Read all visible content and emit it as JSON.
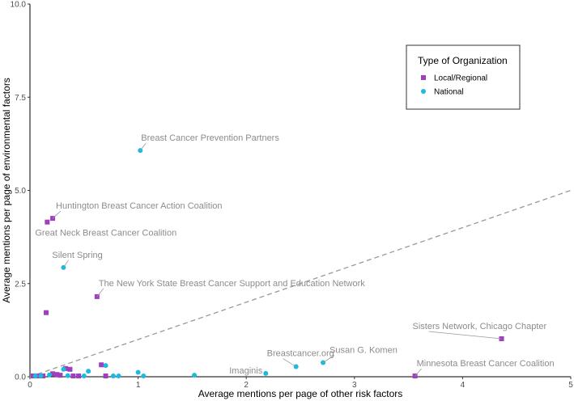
{
  "chart_data": {
    "type": "scatter",
    "title": "",
    "xlabel": "Average mentions per page of other risk factors",
    "ylabel": "Average mentions per page of environmental factors",
    "xlim": [
      0,
      5
    ],
    "ylim": [
      0,
      10
    ],
    "x_ticks": [
      0,
      1,
      2,
      3,
      4,
      5
    ],
    "x_tick_labels": [
      "0",
      "1",
      "2",
      "3",
      "4",
      "5"
    ],
    "y_ticks": [
      0,
      2.5,
      5,
      7.5,
      10
    ],
    "y_tick_labels": [
      "0.0",
      "2.5",
      "5.0",
      "7.5",
      "10.0"
    ],
    "grid": false,
    "reference_line": {
      "style": "dashed",
      "color": "#999999",
      "from": [
        0,
        0
      ],
      "to": [
        5,
        5
      ]
    },
    "legend": {
      "title": "Type of Organization",
      "placement": "top-right",
      "entries": [
        {
          "label": "Local/Regional",
          "color": "#9e3fbf",
          "shape": "square"
        },
        {
          "label": "National",
          "color": "#1cb9e0",
          "shape": "circle"
        }
      ]
    },
    "series": [
      {
        "name": "Local/Regional",
        "color": "#9e3fbf",
        "shape": "square",
        "points": [
          {
            "x": 0.21,
            "y": 4.25,
            "label": "Huntington Breast Cancer Action Coalition"
          },
          {
            "x": 0.16,
            "y": 4.15,
            "label": "Great Neck Breast Cancer Coalition"
          },
          {
            "x": 0.62,
            "y": 2.15,
            "label": "The New York State Breast Cancer Support and Education Network"
          },
          {
            "x": 0.15,
            "y": 1.72,
            "label": ""
          },
          {
            "x": 4.36,
            "y": 1.02,
            "label": "Sisters Network, Chicago Chapter"
          },
          {
            "x": 3.56,
            "y": 0.0,
            "label": "Minnesota Breast Cancer Coalition"
          },
          {
            "x": 0.66,
            "y": 0.32,
            "label": ""
          },
          {
            "x": 0.33,
            "y": 0.22,
            "label": ""
          },
          {
            "x": 0.37,
            "y": 0.2,
            "label": ""
          },
          {
            "x": 0.25,
            "y": 0.06,
            "label": ""
          },
          {
            "x": 0.21,
            "y": 0.08,
            "label": ""
          },
          {
            "x": 0.28,
            "y": 0.04,
            "label": ""
          },
          {
            "x": 0.4,
            "y": 0.02,
            "label": ""
          },
          {
            "x": 0.45,
            "y": 0.01,
            "label": ""
          },
          {
            "x": 0.7,
            "y": 0.0,
            "label": ""
          },
          {
            "x": 0.08,
            "y": 0.01,
            "label": ""
          },
          {
            "x": 0.12,
            "y": 0.02,
            "label": ""
          },
          {
            "x": 0.03,
            "y": 0.0,
            "label": ""
          }
        ]
      },
      {
        "name": "National",
        "color": "#1cb9e0",
        "shape": "circle",
        "points": [
          {
            "x": 1.02,
            "y": 6.07,
            "label": "Breast Cancer Prevention Partners"
          },
          {
            "x": 0.31,
            "y": 2.93,
            "label": "Silent Spring"
          },
          {
            "x": 2.46,
            "y": 0.27,
            "label": "Breastcancer.org"
          },
          {
            "x": 2.71,
            "y": 0.38,
            "label": "Susan G. Komen"
          },
          {
            "x": 2.18,
            "y": 0.09,
            "label": "Imaginis"
          },
          {
            "x": 0.7,
            "y": 0.3,
            "label": ""
          },
          {
            "x": 0.54,
            "y": 0.15,
            "label": ""
          },
          {
            "x": 1.0,
            "y": 0.12,
            "label": ""
          },
          {
            "x": 1.52,
            "y": 0.04,
            "label": ""
          },
          {
            "x": 0.31,
            "y": 0.2,
            "label": ""
          },
          {
            "x": 0.77,
            "y": 0.01,
            "label": ""
          },
          {
            "x": 0.82,
            "y": 0.0,
            "label": ""
          },
          {
            "x": 1.05,
            "y": 0.0,
            "label": ""
          },
          {
            "x": 0.5,
            "y": 0.02,
            "label": ""
          },
          {
            "x": 0.18,
            "y": 0.05,
            "label": ""
          },
          {
            "x": 0.1,
            "y": 0.01,
            "label": ""
          },
          {
            "x": 0.05,
            "y": 0.0,
            "label": ""
          },
          {
            "x": 0.35,
            "y": 0.03,
            "label": ""
          }
        ]
      }
    ]
  }
}
